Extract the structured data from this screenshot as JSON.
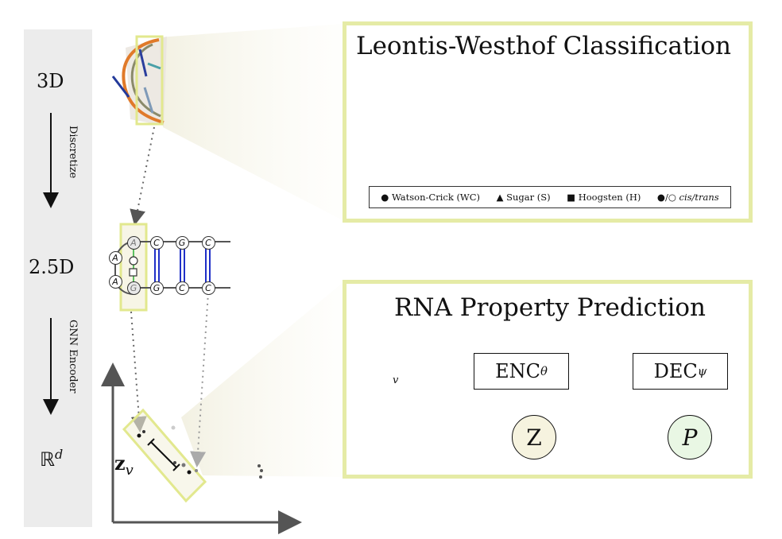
{
  "stages": {
    "label_3d": "3D",
    "label_25d": "2.5D",
    "label_rd": "ℝ",
    "label_rd_sup": "d",
    "step_discretize": "Discretize",
    "step_gnn": "GNN Encoder"
  },
  "graph_nodes": {
    "left": [
      "A",
      "A"
    ],
    "column_top": [
      "A",
      "C",
      "G",
      "C"
    ],
    "column_bottom": [
      "G",
      "G",
      "C",
      "C"
    ]
  },
  "embedding": {
    "vector_label": "z",
    "vector_sub": "v"
  },
  "lw_panel": {
    "title": "Leontis-Westhof Classification",
    "legend": {
      "wc": "Watson-Crick (WC)",
      "sugar": "Sugar (S)",
      "hoogsten": "Hoogsten (H)",
      "cis_trans": "cis/trans"
    }
  },
  "rna_panel": {
    "title": "RNA Property Prediction",
    "node_label": "v",
    "encoder": "ENC",
    "encoder_sub": "θ",
    "decoder": "DEC",
    "decoder_sub": "ψ",
    "latent": "Z",
    "property": "P"
  },
  "colors": {
    "panel_border": "#e5eba6",
    "highlight": "#e2e88e",
    "stage_bar": "#ececec",
    "pair_blue": "#2030c8",
    "molecule_green": "#5cc060",
    "neighborhood_purple": "#7d78b0"
  }
}
